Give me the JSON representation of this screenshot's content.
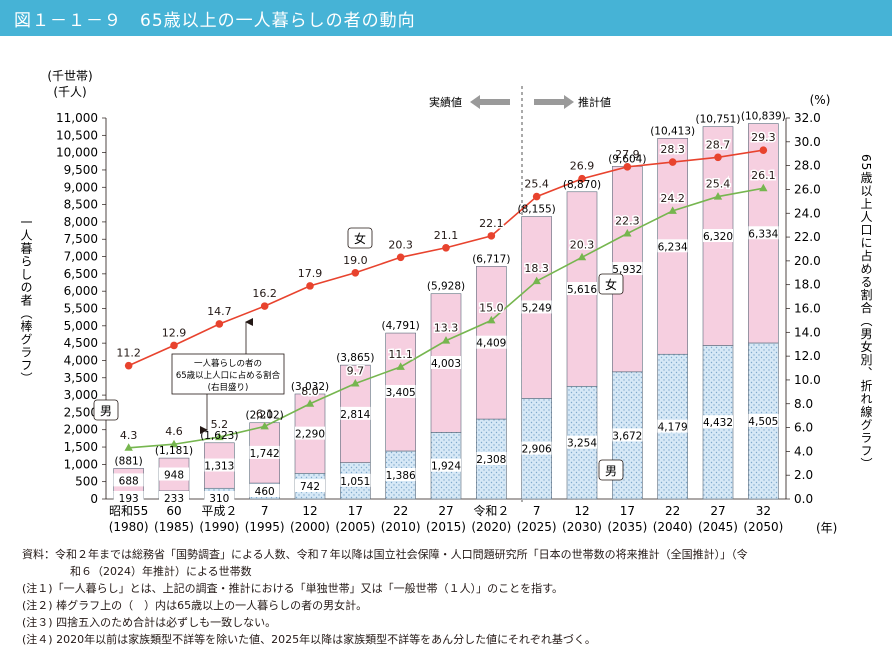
{
  "header": {
    "title": "図１－１－９　65歳以上の一人暮らしの者の動向"
  },
  "chart_data": {
    "type": "bar",
    "stacked": true,
    "categories": [
      "昭和55\n(1980)",
      "60\n(1985)",
      "平成２\n(1990)",
      "7\n(1995)",
      "12\n(2000)",
      "17\n(2005)",
      "22\n(2010)",
      "27\n(2015)",
      "令和２\n(2020)",
      "7\n(2025)",
      "12\n(2030)",
      "17\n(2035)",
      "22\n(2040)",
      "27\n(2045)",
      "32\n(2050)"
    ],
    "category_labels": [
      "昭和55",
      "60",
      "平成２",
      "7",
      "12",
      "17",
      "22",
      "27",
      "令和２",
      "7",
      "12",
      "17",
      "22",
      "27",
      "32"
    ],
    "category_years": [
      "(1980)",
      "(1985)",
      "(1990)",
      "(1995)",
      "(2000)",
      "(2005)",
      "(2010)",
      "(2015)",
      "(2020)",
      "(2025)",
      "(2030)",
      "(2035)",
      "(2040)",
      "(2045)",
      "(2050)"
    ],
    "bar_series": [
      {
        "name": "男",
        "values": [
          193,
          233,
          310,
          460,
          742,
          1051,
          1386,
          1924,
          2308,
          2906,
          3254,
          3672,
          4179,
          4432,
          4505
        ],
        "color": "#cfe3f3"
      },
      {
        "name": "女",
        "values": [
          688,
          948,
          1313,
          1742,
          2290,
          2814,
          3405,
          4003,
          4409,
          5249,
          5616,
          5932,
          6234,
          6320,
          6334
        ],
        "color": "#f6cfe0"
      }
    ],
    "bar_value_labels": {
      "male": [
        "193",
        "233",
        "310",
        "460",
        "742",
        "1,051",
        "1,386",
        "1,924",
        "2,308",
        "2,906",
        "3,254",
        "3,672",
        "4,179",
        "4,432",
        "4,505"
      ],
      "female": [
        "688",
        "948",
        "1,313",
        "1,742",
        "2,290",
        "2,814",
        "3,405",
        "4,003",
        "4,409",
        "5,249",
        "5,616",
        "5,932",
        "6,234",
        "6,320",
        "6,334"
      ]
    },
    "totals": [
      881,
      1181,
      1623,
      2202,
      3032,
      3865,
      4791,
      5928,
      6717,
      8155,
      8870,
      9604,
      10413,
      10751,
      10839
    ],
    "total_labels": [
      "(881)",
      "(1,181)",
      "(1,623)",
      "(2,202)",
      "(3,032)",
      "(3,865)",
      "(4,791)",
      "(5,928)",
      "(6,717)",
      "(8,155)",
      "(8,870)",
      "(9,604)",
      "(10,413)",
      "(10,751)",
      "(10,839)"
    ],
    "line_series": [
      {
        "name": "女",
        "values": [
          11.2,
          12.9,
          14.7,
          16.2,
          17.9,
          19.0,
          20.3,
          21.1,
          22.1,
          25.4,
          26.9,
          27.9,
          28.3,
          28.7,
          29.3
        ],
        "labels": [
          "11.2",
          "12.9",
          "14.7",
          "16.2",
          "17.9",
          "19.0",
          "20.3",
          "21.1",
          "22.1",
          "25.4",
          "26.9",
          "27.9",
          "28.3",
          "28.7",
          "29.3"
        ],
        "color": "#e8432e"
      },
      {
        "name": "男",
        "values": [
          4.3,
          4.6,
          5.2,
          6.1,
          8.0,
          9.7,
          11.1,
          13.3,
          15.0,
          18.3,
          20.3,
          22.3,
          24.2,
          25.4,
          26.1
        ],
        "labels": [
          "4.3",
          "4.6",
          "5.2",
          "6.1",
          "8.0",
          "9.7",
          "11.1",
          "13.3",
          "15.0",
          "18.3",
          "20.3",
          "22.3",
          "24.2",
          "25.4",
          "26.1"
        ],
        "color": "#76b64f"
      }
    ],
    "y_left": {
      "unit_top": "(千世帯)",
      "unit_bottom": "(千人)",
      "range": [
        0,
        11000
      ],
      "ticks": [
        "0",
        "500",
        "1,000",
        "1,500",
        "2,000",
        "2,500",
        "3,000",
        "3,500",
        "4,000",
        "4,500",
        "5,000",
        "5,500",
        "6,000",
        "6,500",
        "7,000",
        "7,500",
        "8,000",
        "8,500",
        "9,000",
        "9,500",
        "10,000",
        "10,500",
        "11,000"
      ],
      "label": "一人暮らしの者（棒グラフ）"
    },
    "y_right": {
      "unit": "(%)",
      "range": [
        0,
        32
      ],
      "ticks": [
        "0.0",
        "2.0",
        "4.0",
        "6.0",
        "8.0",
        "10.0",
        "12.0",
        "14.0",
        "16.0",
        "18.0",
        "20.0",
        "22.0",
        "24.0",
        "26.0",
        "28.0",
        "30.0",
        "32.0"
      ],
      "label": "65歳以上人口に占める割合（男女別、折れ線グラフ）"
    },
    "x_unit": "(年)",
    "actual_label": "実績値",
    "projected_label": "推計値",
    "annotation_lines": [
      "一人暮らしの者の",
      "65歳以上人口に占める割合",
      "(右目盛り)"
    ],
    "bar_label_female": "女",
    "bar_label_male": "男",
    "line_label_female": "女",
    "line_label_male": "男"
  },
  "notes": {
    "source_line1": "資料：令和２年までは総務省「国勢調査」による人数、令和７年以降は国立社会保障・人口問題研究所「日本の世帯数の将来推計（全国推計）」（令",
    "source_line2": "和６（2024）年推計）による世帯数",
    "note1": "(注１)「一人暮らし」とは、上記の調査・推計における「単独世帯」又は「一般世帯（１人）」のことを指す。",
    "note2": "(注２) 棒グラフ上の（　）内は65歳以上の一人暮らしの者の男女計。",
    "note3": "(注３) 四捨五入のため合計は必ずしも一致しない。",
    "note4": "(注４) 2020年以前は家族類型不詳等を除いた値、2025年以降は家族類型不詳等をあん分した値にそれぞれ基づく。"
  }
}
